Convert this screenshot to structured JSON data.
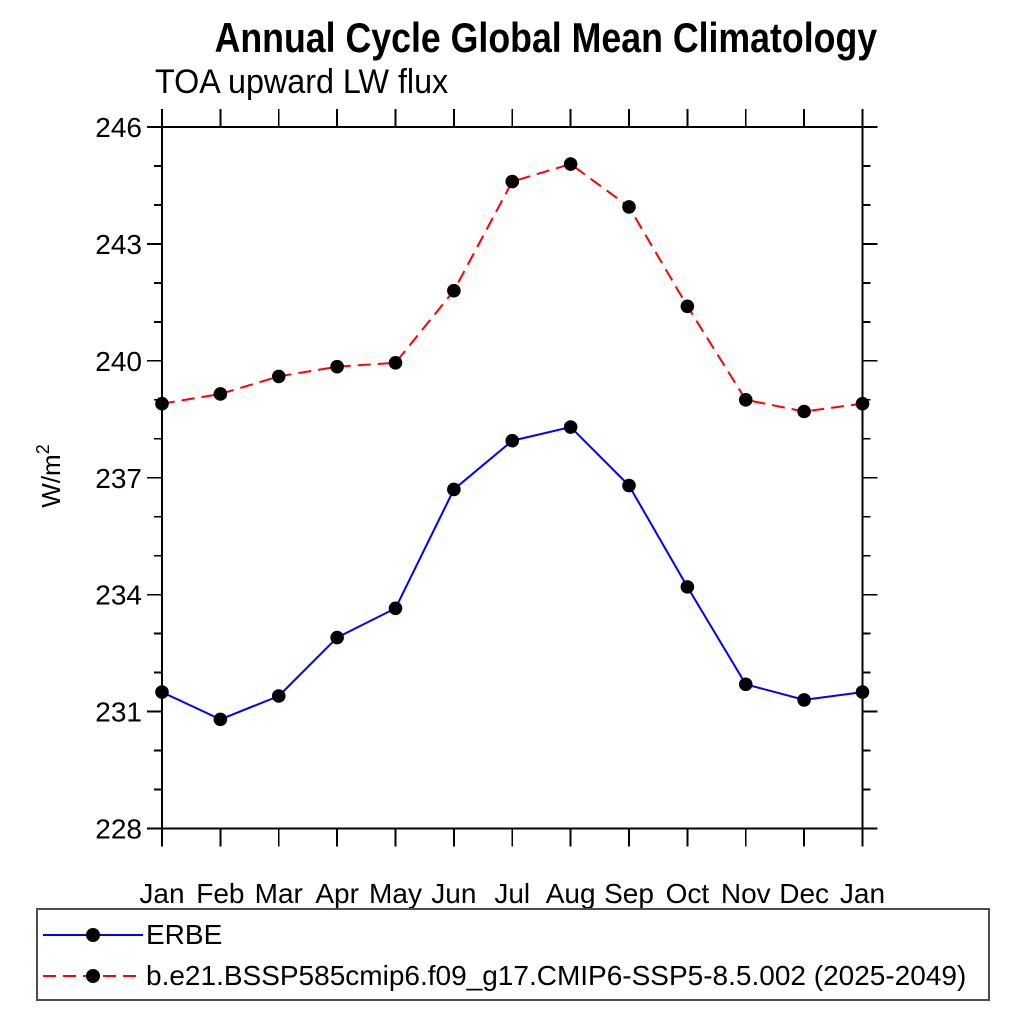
{
  "title": "Annual Cycle Global Mean Climatology",
  "subtitle": "TOA upward LW flux",
  "chart_data": {
    "type": "line",
    "categories": [
      "Jan",
      "Feb",
      "Mar",
      "Apr",
      "May",
      "Jun",
      "Jul",
      "Aug",
      "Sep",
      "Oct",
      "Nov",
      "Dec",
      "Jan"
    ],
    "ylabel": "W/m²",
    "ylabel_base": "W/m",
    "ylabel_exp": "2",
    "ylim": [
      228,
      246
    ],
    "ytick_major": [
      228,
      231,
      234,
      237,
      240,
      243,
      246
    ],
    "ytick_minor_step": 1,
    "grid": false,
    "legend_position": "bottom-left-box",
    "series": [
      {
        "name": "ERBE",
        "color": "#0000ff",
        "line_style": "solid",
        "marker": "filled-circle",
        "marker_color": "#000000",
        "values": [
          231.5,
          230.8,
          231.4,
          232.9,
          233.65,
          236.7,
          237.95,
          238.3,
          236.8,
          234.2,
          231.7,
          231.3,
          231.5
        ]
      },
      {
        "name": "b.e21.BSSP585cmip6.f09_g17.CMIP6-SSP5-8.5.002 (2025-2049)",
        "color": "#ff0000",
        "line_style": "dashed",
        "marker": "filled-circle",
        "marker_color": "#000000",
        "values": [
          238.9,
          239.15,
          239.6,
          239.85,
          239.95,
          241.8,
          244.6,
          245.05,
          243.95,
          241.4,
          239.0,
          238.7,
          238.9
        ]
      }
    ]
  }
}
